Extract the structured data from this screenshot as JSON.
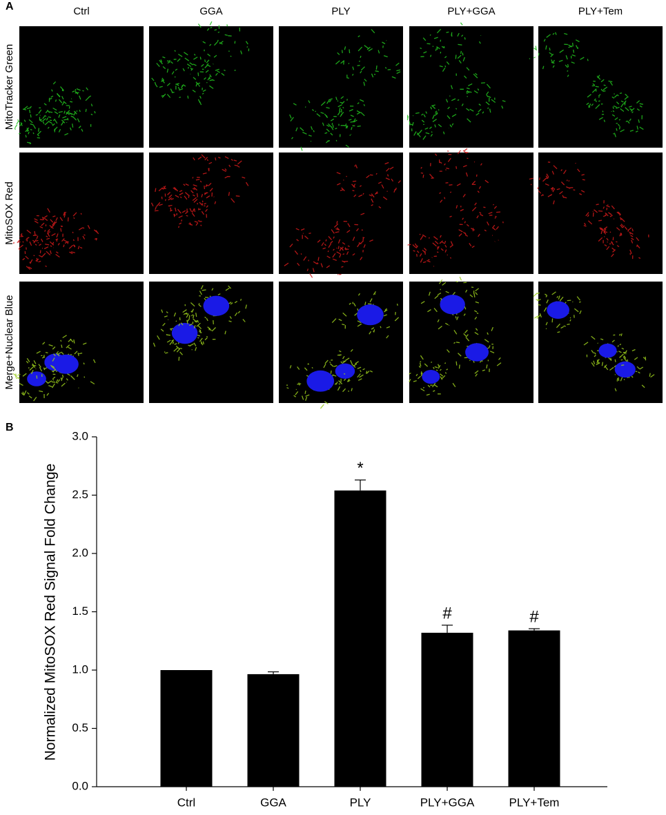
{
  "panel_a": {
    "label": "A",
    "columns": [
      "Ctrl",
      "GGA",
      "PLY",
      "PLY+GGA",
      "PLY+Tem"
    ],
    "rows": [
      "MitoTracker Green",
      "MitoSOX Red",
      "Merge+Nuclear Blue"
    ]
  },
  "chart_data": {
    "type": "bar",
    "panel_label": "B",
    "ylabel": "Normalized MitoSOX Red Signal Fold Change",
    "categories": [
      "Ctrl",
      "GGA",
      "PLY",
      "PLY+GGA",
      "PLY+Tem"
    ],
    "values": [
      1.0,
      0.965,
      2.54,
      1.32,
      1.34
    ],
    "errors": [
      0,
      0.02,
      0.09,
      0.065,
      0.015
    ],
    "markers": [
      null,
      null,
      "*",
      "#",
      "#"
    ],
    "color": "#000000",
    "ylim": [
      0,
      3
    ],
    "yticks": [
      {
        "value": 0,
        "label": "0.0"
      },
      0.5,
      {
        "value": 1,
        "label": "1.0"
      },
      1.5,
      {
        "value": 2,
        "label": "2.0"
      },
      2.5,
      {
        "value": 3,
        "label": "3.0"
      }
    ]
  }
}
